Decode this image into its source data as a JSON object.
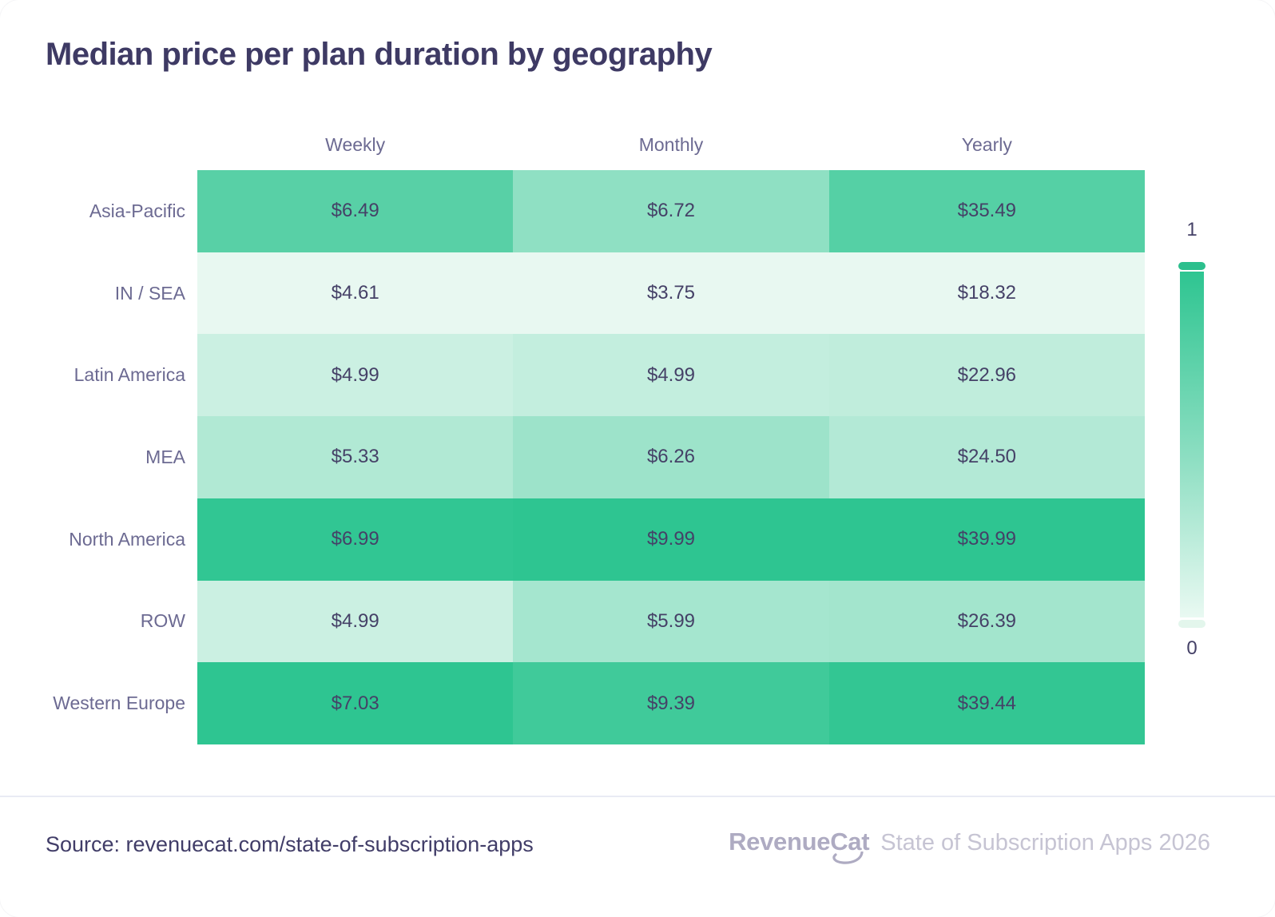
{
  "title": "Median price per plan duration by geography",
  "chart_data": {
    "type": "heatmap",
    "columns": [
      "Weekly",
      "Monthly",
      "Yearly"
    ],
    "rows": [
      "Asia-Pacific",
      "IN / SEA",
      "Latin America",
      "MEA",
      "North America",
      "ROW",
      "Western Europe"
    ],
    "values": [
      [
        6.49,
        6.72,
        35.49
      ],
      [
        4.61,
        3.75,
        18.32
      ],
      [
        4.99,
        4.99,
        22.96
      ],
      [
        5.33,
        6.26,
        24.5
      ],
      [
        6.99,
        9.99,
        39.99
      ],
      [
        4.99,
        5.99,
        26.39
      ],
      [
        7.03,
        9.39,
        39.44
      ]
    ],
    "labels": [
      [
        "$6.49",
        "$6.72",
        "$35.49"
      ],
      [
        "$4.61",
        "$3.75",
        "$18.32"
      ],
      [
        "$4.99",
        "$4.99",
        "$22.96"
      ],
      [
        "$5.33",
        "$6.26",
        "$24.50"
      ],
      [
        "$6.99",
        "$9.99",
        "$39.99"
      ],
      [
        "$4.99",
        "$5.99",
        "$26.39"
      ],
      [
        "$7.03",
        "$9.39",
        "$39.44"
      ]
    ],
    "normalization": "per-column",
    "colorbar": {
      "max_label": "1",
      "min_label": "0"
    },
    "colors": {
      "scale_min": "#e8f8f1",
      "scale_max": "#2ec591"
    }
  },
  "footer": {
    "source": "Source: revenuecat.com/state-of-subscription-apps",
    "brand_revenue": "Revenue",
    "brand_cat": "Cat",
    "report": "State of Subscription Apps 2026"
  }
}
